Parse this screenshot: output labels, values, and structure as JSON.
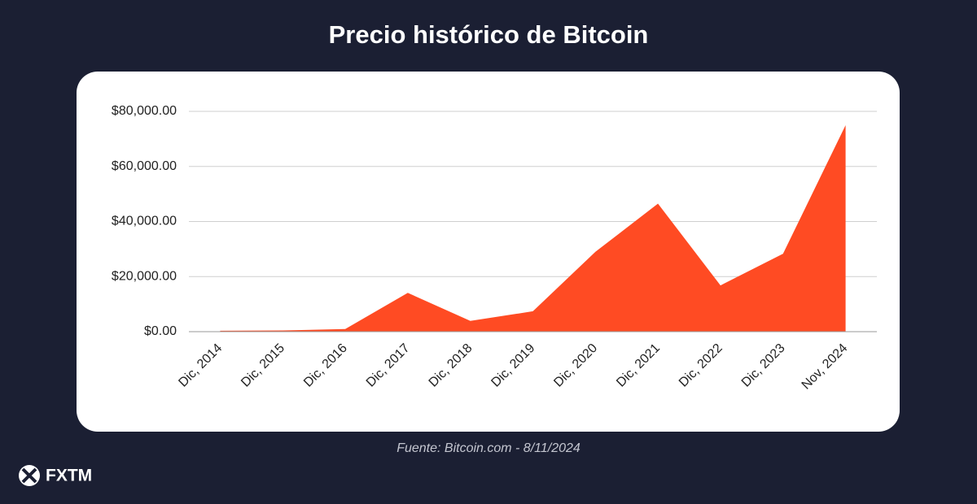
{
  "chart_data": {
    "type": "area",
    "title": "Precio histórico de Bitcoin",
    "categories": [
      "Dic, 2014",
      "Dic, 2015",
      "Dic, 2016",
      "Dic, 2017",
      "Dic, 2018",
      "Dic, 2019",
      "Dic, 2020",
      "Dic, 2021",
      "Dic, 2022",
      "Dic, 2023",
      "Nov, 2024"
    ],
    "values": [
      320,
      430,
      960,
      14100,
      3900,
      7400,
      29000,
      46500,
      16800,
      28300,
      75000
    ],
    "color": "#ff4b23",
    "ylim": [
      0,
      80000
    ],
    "yticks": [
      {
        "value": 0,
        "label": "$0.00"
      },
      {
        "value": 20000,
        "label": "$20,000.00"
      },
      {
        "value": 40000,
        "label": "$40,000.00"
      },
      {
        "value": 60000,
        "label": "$60,000.00"
      },
      {
        "value": 80000,
        "label": "$80,000.00"
      }
    ],
    "grid": true,
    "source": "Fuente: Bitcoin.com - 8/11/2024",
    "brand": "FXTM"
  }
}
